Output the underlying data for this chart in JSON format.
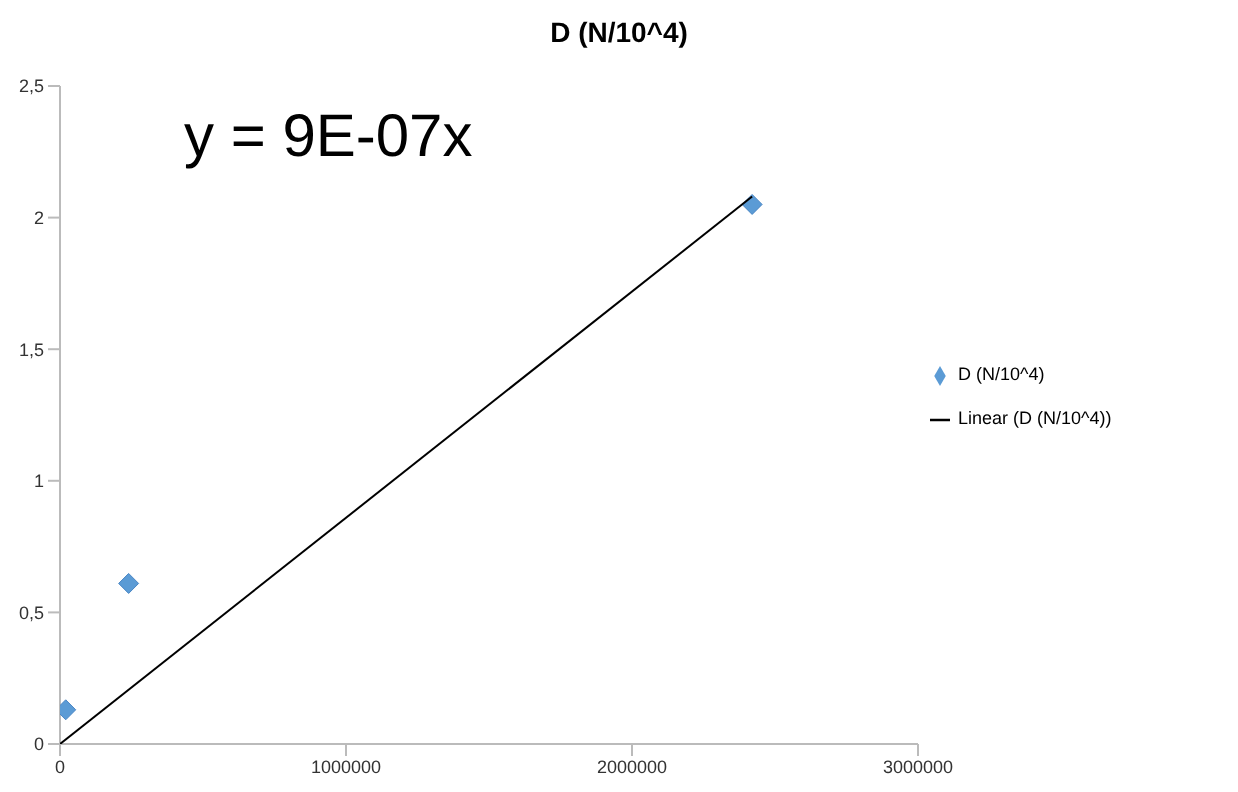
{
  "chart_data": {
    "type": "scatter",
    "title": "D (N/10^4)",
    "series": [
      {
        "name": "D (N/10^4)",
        "color": "#5b9bd5",
        "marker": "diamond",
        "x": [
          20000,
          240000,
          2420000
        ],
        "values": [
          0.13,
          0.61,
          2.05
        ]
      },
      {
        "name": "Linear (D (N/10^4))",
        "type": "line",
        "color": "#000000",
        "marker": "none",
        "line_style": "solid",
        "x": [
          0,
          2420000
        ],
        "values": [
          0,
          2.08
        ]
      }
    ],
    "annotations": [
      "y = 9E-07x"
    ],
    "xlim": [
      0,
      3000000
    ],
    "xticks": [
      0,
      1000000,
      2000000,
      3000000
    ],
    "ylim": [
      0,
      2.5
    ],
    "yticks": [
      0,
      {
        "value": 0.5,
        "label": "0,5"
      },
      1,
      {
        "value": 1.5,
        "label": "1,5"
      },
      2,
      {
        "value": 2.5,
        "label": "2,5"
      }
    ],
    "grid": false,
    "legend": "right"
  }
}
